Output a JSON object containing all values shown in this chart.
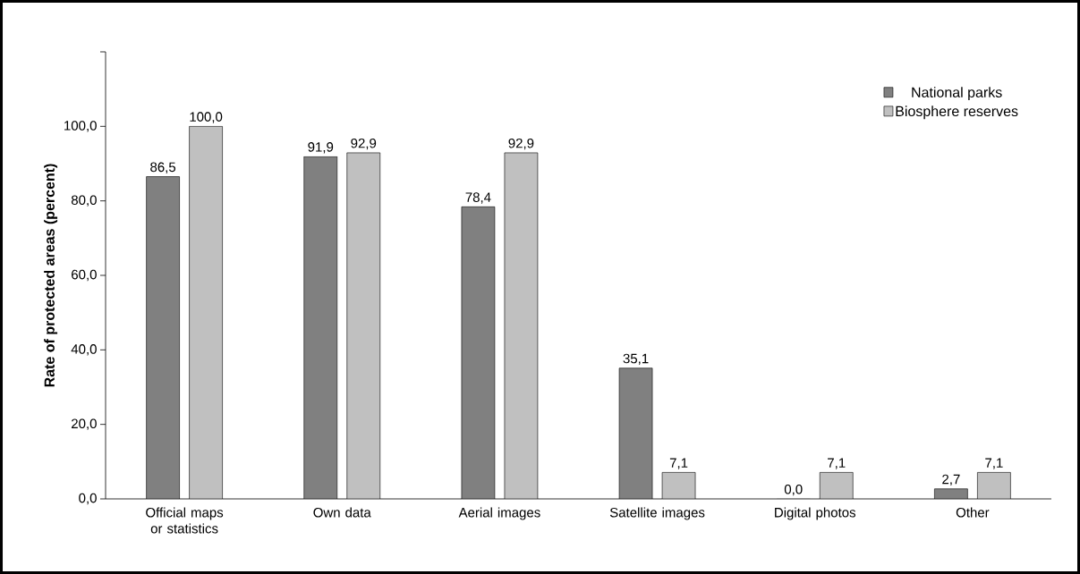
{
  "chart_data": {
    "type": "bar",
    "ylabel": "Rate of protected areas (percent)",
    "categories": [
      "Official maps or statistics",
      "Own data",
      "Aerial images",
      "Satellite images",
      "Digital photos",
      "Other"
    ],
    "series": [
      {
        "name": "National parks",
        "color": "#808080",
        "values": [
          86.5,
          91.9,
          78.4,
          35.1,
          0.0,
          2.7
        ],
        "value_labels": [
          "86,5",
          "91,9",
          "78,4",
          "35,1",
          "0,0",
          "2,7"
        ]
      },
      {
        "name": "Biosphere reserves",
        "color": "#c0c0c0",
        "values": [
          100.0,
          92.9,
          92.9,
          7.1,
          7.1,
          7.1
        ],
        "value_labels": [
          "100,0",
          "92,9",
          "92,9",
          "7,1",
          "7,1",
          "7,1"
        ]
      }
    ],
    "ylim": [
      0,
      120
    ],
    "yticks": [
      {
        "value": 0,
        "label": "0,0"
      },
      {
        "value": 20,
        "label": "20,0"
      },
      {
        "value": 40,
        "label": "40,0"
      },
      {
        "value": 60,
        "label": "60,0"
      },
      {
        "value": 80,
        "label": "80,0"
      },
      {
        "value": 100,
        "label": "100,0"
      },
      {
        "value": 120,
        "label": null
      }
    ],
    "legend": "top right"
  }
}
